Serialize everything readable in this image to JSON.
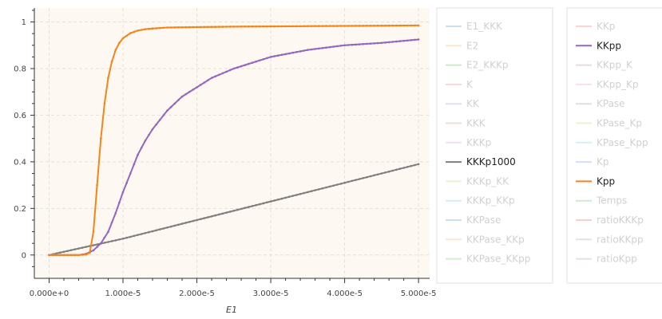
{
  "chart_data": {
    "type": "line",
    "xlabel": "E1",
    "ylabel": "",
    "xlim": [
      -2e-06,
      5.15e-05
    ],
    "ylim": [
      -0.1,
      1.06
    ],
    "x_ticks": [
      0,
      1e-05,
      2e-05,
      3e-05,
      4e-05,
      5e-05
    ],
    "x_tick_labels": [
      "0.000e+0",
      "1.000e-5",
      "2.000e-5",
      "3.000e-5",
      "4.000e-5",
      "5.000e-5"
    ],
    "y_ticks": [
      0,
      0.2,
      0.4,
      0.6,
      0.8,
      1
    ],
    "y_tick_labels": [
      "0",
      "0.2",
      "0.4",
      "0.6",
      "0.8",
      "1"
    ],
    "grid": true,
    "background": "#fdf8f2",
    "legend_placement": "right, two columns",
    "visible_series": [
      {
        "name": "Kpp",
        "color": "#f58518",
        "x": [
          0,
          2e-06,
          4e-06,
          5e-06,
          5.5e-06,
          6e-06,
          6.5e-06,
          7e-06,
          7.5e-06,
          8e-06,
          8.5e-06,
          9e-06,
          9.5e-06,
          1e-05,
          1.1e-05,
          1.2e-05,
          1.3e-05,
          1.4e-05,
          1.5e-05,
          1.6e-05,
          1.8e-05,
          2e-05,
          2.5e-05,
          3e-05,
          3.5e-05,
          4e-05,
          4.5e-05,
          5e-05
        ],
        "y": [
          0,
          0,
          0,
          0.002,
          0.01,
          0.1,
          0.3,
          0.5,
          0.65,
          0.76,
          0.83,
          0.88,
          0.91,
          0.93,
          0.952,
          0.963,
          0.969,
          0.972,
          0.974,
          0.976,
          0.977,
          0.978,
          0.98,
          0.981,
          0.982,
          0.983,
          0.984,
          0.985
        ]
      },
      {
        "name": "KKpp",
        "color": "#9467bd",
        "x": [
          0,
          2e-06,
          4e-06,
          5e-06,
          6e-06,
          7e-06,
          8e-06,
          9e-06,
          1e-05,
          1.1e-05,
          1.2e-05,
          1.3e-05,
          1.4e-05,
          1.5e-05,
          1.6e-05,
          1.8e-05,
          2e-05,
          2.2e-05,
          2.5e-05,
          2.8e-05,
          3e-05,
          3.5e-05,
          4e-05,
          4.5e-05,
          5e-05
        ],
        "y": [
          0,
          0,
          0,
          0.005,
          0.02,
          0.05,
          0.1,
          0.18,
          0.27,
          0.35,
          0.43,
          0.49,
          0.54,
          0.58,
          0.62,
          0.68,
          0.72,
          0.76,
          0.8,
          0.83,
          0.85,
          0.88,
          0.9,
          0.91,
          0.925
        ]
      },
      {
        "name": "KKKp1000",
        "color": "#7f7f7f",
        "x": [
          0,
          1e-05,
          2e-05,
          3e-05,
          4e-05,
          5e-05
        ],
        "y": [
          0,
          0.07,
          0.15,
          0.23,
          0.31,
          0.39
        ]
      }
    ],
    "legend": {
      "columns": [
        [
          {
            "name": "E1_KKK",
            "color": "#9ecae1",
            "active": false
          },
          {
            "name": "E2",
            "color": "#fdd0a2",
            "active": false
          },
          {
            "name": "E2_KKKp",
            "color": "#a1d99b",
            "active": false
          },
          {
            "name": "K",
            "color": "#fbb4b9",
            "active": false
          },
          {
            "name": "KK",
            "color": "#cbc9e2",
            "active": false
          },
          {
            "name": "KKK",
            "color": "#d9c5b2",
            "active": false
          },
          {
            "name": "KKKp",
            "color": "#f4c6e2",
            "active": false
          },
          {
            "name": "KKKp1000",
            "color": "#7f7f7f",
            "active": true
          },
          {
            "name": "KKKp_KK",
            "color": "#e0e8a0",
            "active": false
          },
          {
            "name": "KKKp_KKp",
            "color": "#a8e0ea",
            "active": false
          },
          {
            "name": "KKPase",
            "color": "#a6c8e0",
            "active": false
          },
          {
            "name": "KKPase_KKp",
            "color": "#fdd2b0",
            "active": false
          },
          {
            "name": "KKPase_KKpp",
            "color": "#b2dfb0",
            "active": false
          }
        ],
        [
          {
            "name": "KKp",
            "color": "#fbb0b0",
            "active": false
          },
          {
            "name": "KKpp",
            "color": "#9467bd",
            "active": true
          },
          {
            "name": "KKpp_K",
            "color": "#d0c4c0",
            "active": false
          },
          {
            "name": "KKpp_Kp",
            "color": "#f8c8dc",
            "active": false
          },
          {
            "name": "KPase",
            "color": "#c8c8c8",
            "active": false
          },
          {
            "name": "KPase_Kp",
            "color": "#e4e4a8",
            "active": false
          },
          {
            "name": "KPase_Kpp",
            "color": "#b0e4ec",
            "active": false
          },
          {
            "name": "Kp",
            "color": "#a8c8e4",
            "active": false
          },
          {
            "name": "Kpp",
            "color": "#f58518",
            "active": true
          },
          {
            "name": "Temps",
            "color": "#a8dca8",
            "active": false
          },
          {
            "name": "ratioKKKp",
            "color": "#f4a8a8",
            "active": false
          },
          {
            "name": "ratioKKpp",
            "color": "#d4c4e4",
            "active": false
          },
          {
            "name": "ratioKpp",
            "color": "#d8c8c0",
            "active": false
          }
        ]
      ]
    }
  }
}
